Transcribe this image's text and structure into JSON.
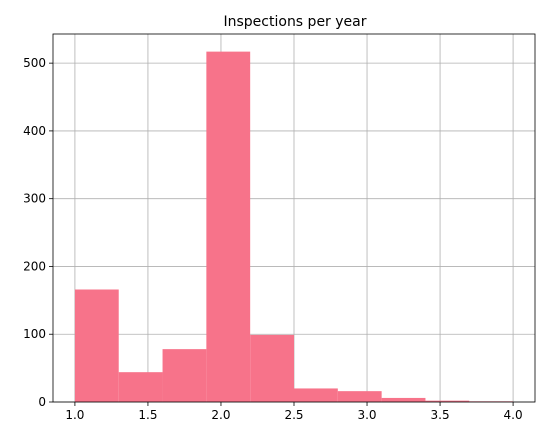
{
  "chart_data": {
    "type": "bar",
    "title": "Inspections per year",
    "xlabel": "",
    "ylabel": "",
    "bin_edges": [
      1.0,
      1.3,
      1.6,
      1.9,
      2.2,
      2.5,
      2.8,
      3.1,
      3.4,
      3.7,
      4.0
    ],
    "values": [
      166,
      44,
      78,
      517,
      99,
      20,
      16,
      6,
      2,
      1
    ],
    "xlim": [
      0.85,
      4.15
    ],
    "ylim": [
      0,
      543
    ],
    "xticks": [
      1.0,
      1.5,
      2.0,
      2.5,
      3.0,
      3.5,
      4.0
    ],
    "xtick_labels": [
      "1.0",
      "1.5",
      "2.0",
      "2.5",
      "3.0",
      "3.5",
      "4.0"
    ],
    "yticks": [
      0,
      100,
      200,
      300,
      400,
      500
    ],
    "ytick_labels": [
      "0",
      "100",
      "200",
      "300",
      "400",
      "500"
    ],
    "grid": true,
    "bar_color": "#f7738a",
    "grid_color": "#b0b0b0"
  }
}
